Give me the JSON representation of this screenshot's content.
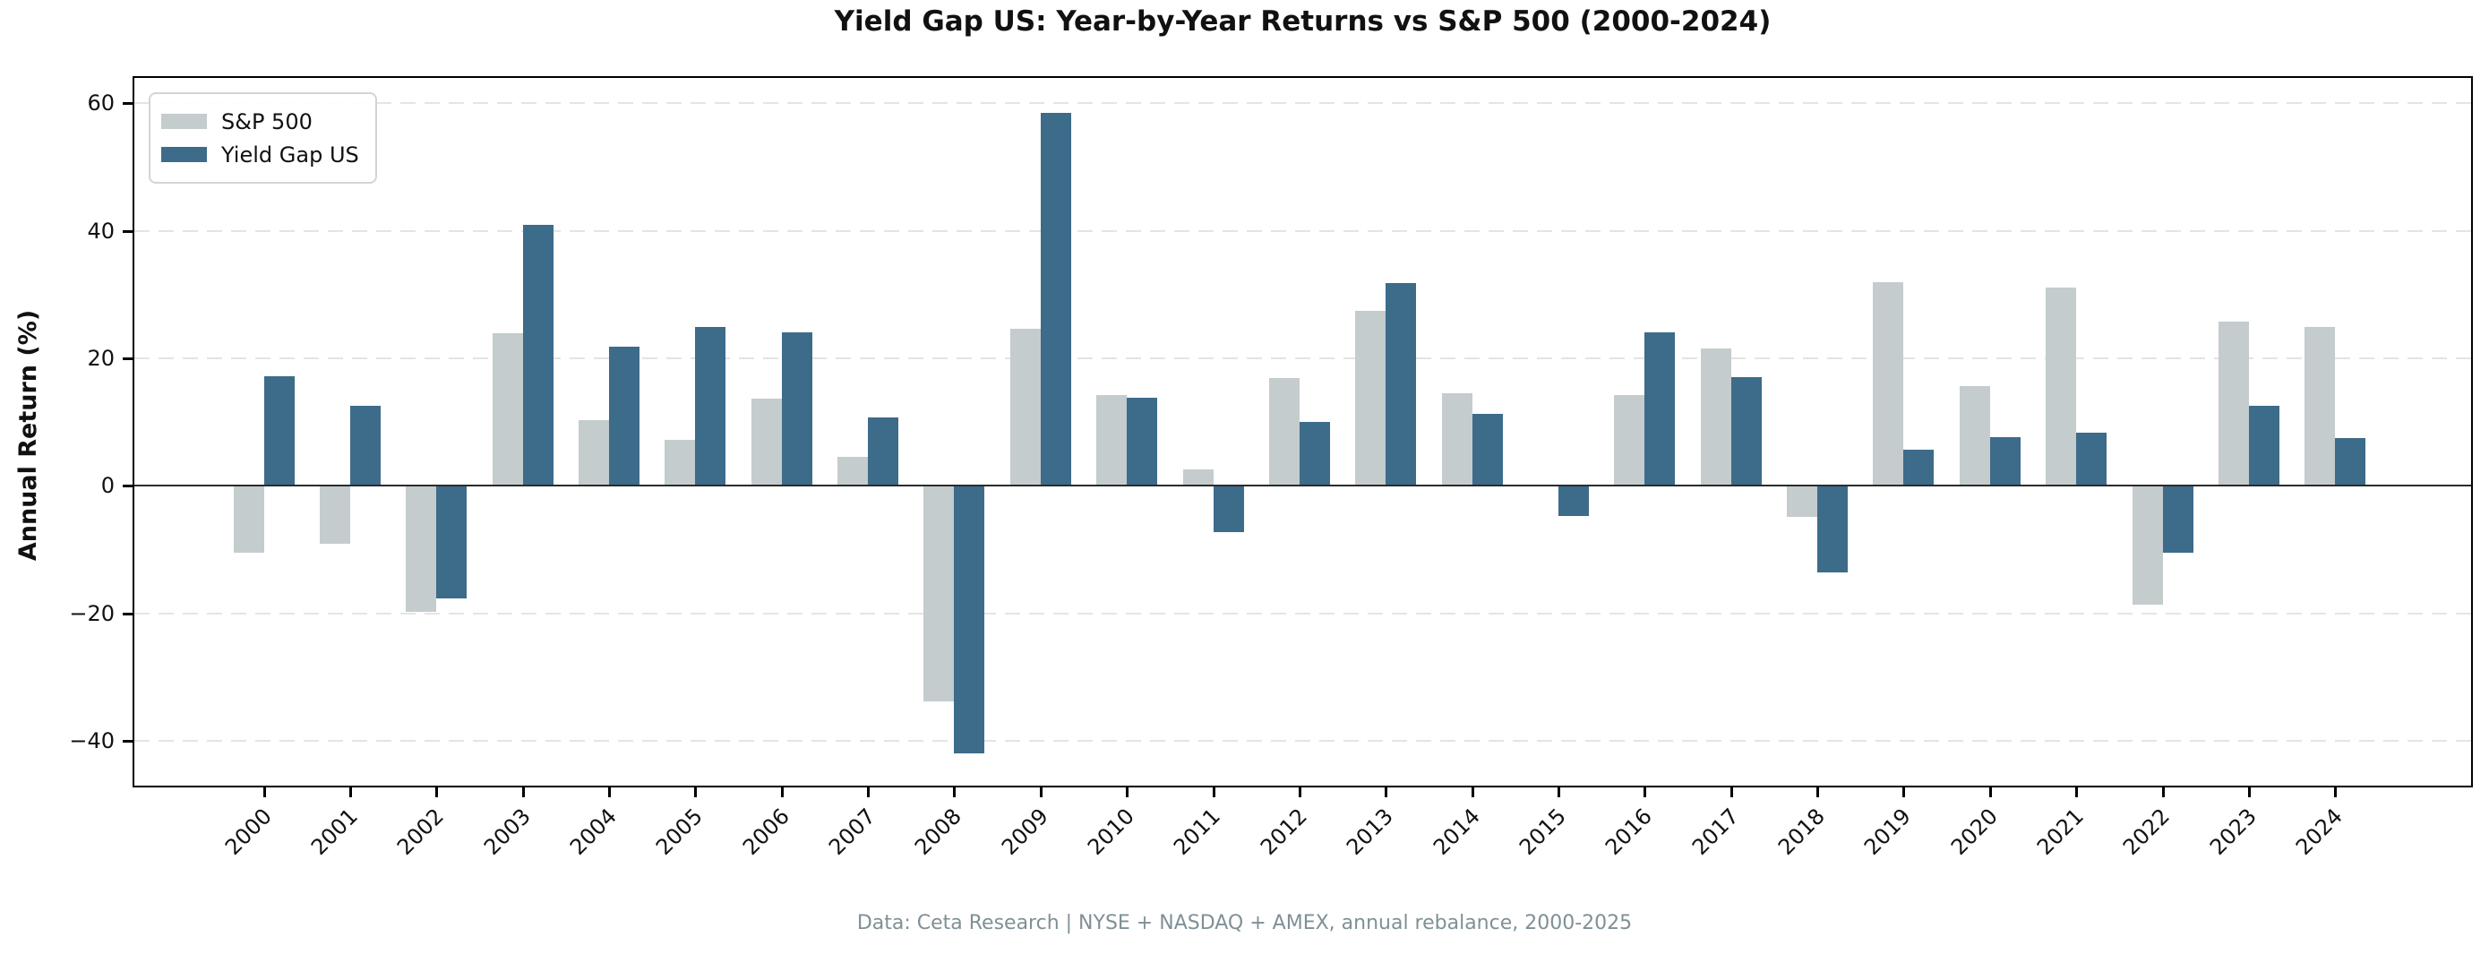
{
  "title": "Yield Gap US: Year-by-Year Returns vs S&P 500 (2000-2024)",
  "footer": "Data: Ceta Research | NYSE + NASDAQ + AMEX, annual rebalance, 2000-2025",
  "colors": {
    "sp500": "#c4cccd",
    "yield_gap": "#3d6b8a",
    "grid": "#e4e4e4",
    "zero_line": "#2b2b2b",
    "spine": "#000000",
    "footer_text": "#7f9096"
  },
  "chart_data": {
    "type": "bar",
    "title": "Yield Gap US: Year-by-Year Returns vs S&P 500 (2000-2024)",
    "xlabel": "",
    "ylabel": "Annual Return (%)",
    "categories": [
      "2000",
      "2001",
      "2002",
      "2003",
      "2004",
      "2005",
      "2006",
      "2007",
      "2008",
      "2009",
      "2010",
      "2011",
      "2012",
      "2013",
      "2014",
      "2015",
      "2016",
      "2017",
      "2018",
      "2019",
      "2020",
      "2021",
      "2022",
      "2023",
      "2024"
    ],
    "series": [
      {
        "name": "S&P 500",
        "color": "#c4cccd",
        "values": [
          -10.4,
          -9.1,
          -19.7,
          23.9,
          10.3,
          7.3,
          13.7,
          4.5,
          -33.8,
          24.7,
          14.3,
          2.6,
          17.0,
          27.5,
          14.5,
          0.0,
          14.3,
          21.6,
          -4.8,
          32.0,
          15.6,
          31.1,
          -18.6,
          25.8,
          25.0
        ]
      },
      {
        "name": "Yield Gap US",
        "color": "#3d6b8a",
        "values": [
          17.2,
          12.6,
          -17.6,
          40.9,
          21.9,
          25.0,
          24.1,
          10.7,
          -42.0,
          58.5,
          13.9,
          -7.3,
          10.1,
          31.8,
          11.3,
          -4.7,
          24.1,
          17.1,
          -13.6,
          5.7,
          7.7,
          8.4,
          -10.4,
          12.6,
          7.5
        ]
      }
    ],
    "ylim": [
      -47,
      64
    ],
    "yticks": [
      {
        "value": 60,
        "label": "60"
      },
      {
        "value": 40,
        "label": "40"
      },
      {
        "value": 20,
        "label": "20"
      },
      {
        "value": 0,
        "label": "0"
      },
      {
        "value": -20,
        "label": "−20"
      },
      {
        "value": -40,
        "label": "−40"
      }
    ],
    "grid": "horizontal-dashed",
    "legend_position": "upper-left"
  }
}
